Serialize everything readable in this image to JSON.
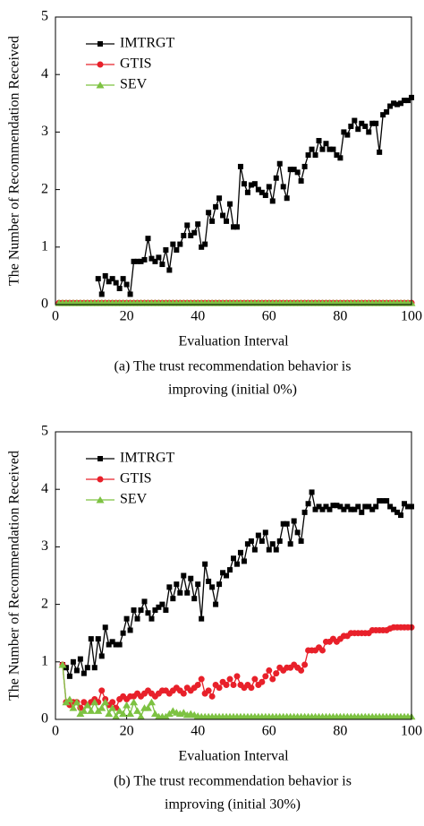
{
  "chart_data": [
    {
      "type": "line",
      "x_label": "Evaluation Interval",
      "y_label": "The Number of Recommendation Received",
      "caption": [
        "(a)   The trust recommendation behavior is",
        "improving (initial 0%)"
      ],
      "xlim": [
        0,
        100
      ],
      "ylim": [
        0,
        5
      ],
      "xticks": [
        0,
        20,
        40,
        60,
        80,
        100
      ],
      "yticks": [
        0,
        1,
        2,
        3,
        4,
        5
      ],
      "legend": "upper-left",
      "x": [
        1,
        2,
        3,
        4,
        5,
        6,
        7,
        8,
        9,
        10,
        11,
        12,
        13,
        14,
        15,
        16,
        17,
        18,
        19,
        20,
        21,
        22,
        23,
        24,
        25,
        26,
        27,
        28,
        29,
        30,
        31,
        32,
        33,
        34,
        35,
        36,
        37,
        38,
        39,
        40,
        41,
        42,
        43,
        44,
        45,
        46,
        47,
        48,
        49,
        50,
        51,
        52,
        53,
        54,
        55,
        56,
        57,
        58,
        59,
        60,
        61,
        62,
        63,
        64,
        65,
        66,
        67,
        68,
        69,
        70,
        71,
        72,
        73,
        74,
        75,
        76,
        77,
        78,
        79,
        80,
        81,
        82,
        83,
        84,
        85,
        86,
        87,
        88,
        89,
        90,
        91,
        92,
        93,
        94,
        95,
        96,
        97,
        98,
        99,
        100
      ],
      "series": [
        {
          "name": "IMTRGT",
          "color": "#000000",
          "marker": "square",
          "values": [
            null,
            null,
            null,
            null,
            null,
            null,
            null,
            null,
            null,
            null,
            null,
            0.45,
            0.18,
            0.5,
            0.4,
            0.45,
            0.38,
            0.28,
            0.45,
            0.35,
            0.18,
            0.75,
            0.75,
            0.75,
            0.78,
            1.15,
            0.8,
            0.75,
            0.82,
            0.7,
            0.95,
            0.6,
            1.05,
            0.95,
            1.05,
            1.2,
            1.38,
            1.2,
            1.25,
            1.4,
            1.0,
            1.05,
            1.6,
            1.45,
            1.7,
            1.85,
            1.55,
            1.45,
            1.75,
            1.35,
            1.35,
            2.4,
            2.1,
            1.95,
            2.08,
            2.1,
            2.0,
            1.95,
            1.9,
            2.05,
            1.8,
            2.2,
            2.45,
            2.05,
            1.85,
            2.35,
            2.35,
            2.3,
            2.15,
            2.4,
            2.6,
            2.7,
            2.6,
            2.85,
            2.7,
            2.8,
            2.7,
            2.7,
            2.6,
            2.55,
            3.0,
            2.95,
            3.1,
            3.2,
            3.05,
            3.15,
            3.1,
            3.0,
            3.15,
            3.15,
            2.65,
            3.3,
            3.35,
            3.45,
            3.5,
            3.48,
            3.5,
            3.55,
            3.55,
            3.6
          ]
        },
        {
          "name": "GTIS",
          "color": "#e8202a",
          "marker": "circle",
          "values": [
            0.03,
            0.03,
            0.03,
            0.03,
            0.03,
            0.03,
            0.03,
            0.03,
            0.03,
            0.03,
            0.03,
            0.03,
            0.03,
            0.03,
            0.03,
            0.03,
            0.03,
            0.03,
            0.03,
            0.03,
            0.03,
            0.03,
            0.03,
            0.03,
            0.03,
            0.03,
            0.03,
            0.03,
            0.03,
            0.03,
            0.03,
            0.03,
            0.03,
            0.03,
            0.03,
            0.03,
            0.03,
            0.03,
            0.03,
            0.03,
            0.03,
            0.03,
            0.03,
            0.03,
            0.03,
            0.03,
            0.03,
            0.03,
            0.03,
            0.03,
            0.03,
            0.03,
            0.03,
            0.03,
            0.03,
            0.03,
            0.03,
            0.03,
            0.03,
            0.03,
            0.03,
            0.03,
            0.03,
            0.03,
            0.03,
            0.03,
            0.03,
            0.03,
            0.03,
            0.03,
            0.03,
            0.03,
            0.03,
            0.03,
            0.03,
            0.03,
            0.03,
            0.03,
            0.03,
            0.03,
            0.03,
            0.03,
            0.03,
            0.03,
            0.03,
            0.03,
            0.03,
            0.03,
            0.03,
            0.03,
            0.03,
            0.03,
            0.03,
            0.03,
            0.03,
            0.03,
            0.03,
            0.03,
            0.03,
            0.03
          ]
        },
        {
          "name": "SEV",
          "color": "#7dc242",
          "marker": "triangle",
          "values": [
            0.03,
            0.03,
            0.03,
            0.03,
            0.03,
            0.03,
            0.03,
            0.03,
            0.03,
            0.03,
            0.03,
            0.03,
            0.03,
            0.03,
            0.03,
            0.03,
            0.03,
            0.03,
            0.03,
            0.03,
            0.03,
            0.03,
            0.03,
            0.03,
            0.03,
            0.03,
            0.03,
            0.03,
            0.03,
            0.03,
            0.03,
            0.03,
            0.03,
            0.03,
            0.03,
            0.03,
            0.03,
            0.03,
            0.03,
            0.03,
            0.03,
            0.03,
            0.03,
            0.03,
            0.03,
            0.03,
            0.03,
            0.03,
            0.03,
            0.03,
            0.03,
            0.03,
            0.03,
            0.03,
            0.03,
            0.03,
            0.03,
            0.03,
            0.03,
            0.03,
            0.03,
            0.03,
            0.03,
            0.03,
            0.03,
            0.03,
            0.03,
            0.03,
            0.03,
            0.03,
            0.03,
            0.03,
            0.03,
            0.03,
            0.03,
            0.03,
            0.03,
            0.03,
            0.03,
            0.03,
            0.03,
            0.03,
            0.03,
            0.03,
            0.03,
            0.03,
            0.03,
            0.03,
            0.03,
            0.03,
            0.03,
            0.03,
            0.03,
            0.03,
            0.03,
            0.03,
            0.03,
            0.03,
            0.03,
            0.03
          ]
        }
      ]
    },
    {
      "type": "line",
      "x_label": "Evaluation Interval",
      "y_label": "The Number of Recommendation Received",
      "caption": [
        "(b)   The trust recommendation behavior is",
        "improving (initial 30%)"
      ],
      "xlim": [
        0,
        100
      ],
      "ylim": [
        0,
        5
      ],
      "xticks": [
        0,
        20,
        40,
        60,
        80,
        100
      ],
      "yticks": [
        0,
        1,
        2,
        3,
        4,
        5
      ],
      "legend": "upper-left",
      "x": [
        1,
        2,
        3,
        4,
        5,
        6,
        7,
        8,
        9,
        10,
        11,
        12,
        13,
        14,
        15,
        16,
        17,
        18,
        19,
        20,
        21,
        22,
        23,
        24,
        25,
        26,
        27,
        28,
        29,
        30,
        31,
        32,
        33,
        34,
        35,
        36,
        37,
        38,
        39,
        40,
        41,
        42,
        43,
        44,
        45,
        46,
        47,
        48,
        49,
        50,
        51,
        52,
        53,
        54,
        55,
        56,
        57,
        58,
        59,
        60,
        61,
        62,
        63,
        64,
        65,
        66,
        67,
        68,
        69,
        70,
        71,
        72,
        73,
        74,
        75,
        76,
        77,
        78,
        79,
        80,
        81,
        82,
        83,
        84,
        85,
        86,
        87,
        88,
        89,
        90,
        91,
        92,
        93,
        94,
        95,
        96,
        97,
        98,
        99,
        100
      ],
      "series": [
        {
          "name": "IMTRGT",
          "color": "#000000",
          "marker": "square",
          "values": [
            null,
            0.95,
            0.9,
            0.75,
            1.0,
            0.85,
            1.05,
            0.8,
            0.9,
            1.4,
            0.9,
            1.4,
            1.1,
            1.6,
            1.3,
            1.35,
            1.3,
            1.3,
            1.5,
            1.75,
            1.55,
            1.9,
            1.75,
            1.9,
            2.05,
            1.85,
            1.75,
            1.9,
            1.95,
            2.0,
            1.9,
            2.3,
            2.1,
            2.35,
            2.2,
            2.5,
            2.2,
            2.45,
            2.1,
            2.35,
            1.75,
            2.7,
            2.4,
            2.3,
            2.0,
            2.35,
            2.55,
            2.5,
            2.6,
            2.8,
            2.7,
            2.9,
            2.75,
            3.05,
            3.1,
            2.95,
            3.2,
            3.1,
            3.25,
            2.95,
            3.05,
            2.95,
            3.1,
            3.4,
            3.4,
            3.05,
            3.45,
            3.25,
            3.1,
            3.6,
            3.75,
            3.95,
            3.65,
            3.7,
            3.65,
            3.7,
            3.65,
            3.72,
            3.72,
            3.7,
            3.65,
            3.7,
            3.65,
            3.65,
            3.7,
            3.6,
            3.7,
            3.7,
            3.65,
            3.7,
            3.8,
            3.8,
            3.8,
            3.7,
            3.65,
            3.6,
            3.55,
            3.75,
            3.7,
            3.7
          ]
        },
        {
          "name": "GTIS",
          "color": "#e8202a",
          "marker": "circle",
          "values": [
            null,
            0.95,
            0.3,
            0.25,
            0.3,
            0.3,
            0.2,
            0.3,
            0.25,
            0.3,
            0.35,
            0.3,
            0.5,
            0.35,
            0.25,
            0.3,
            0.2,
            0.35,
            0.4,
            0.35,
            0.4,
            0.4,
            0.45,
            0.4,
            0.45,
            0.5,
            0.45,
            0.4,
            0.45,
            0.5,
            0.5,
            0.45,
            0.5,
            0.55,
            0.5,
            0.45,
            0.55,
            0.5,
            0.55,
            0.6,
            0.7,
            0.45,
            0.5,
            0.4,
            0.6,
            0.55,
            0.65,
            0.6,
            0.7,
            0.6,
            0.75,
            0.6,
            0.55,
            0.6,
            0.55,
            0.7,
            0.6,
            0.65,
            0.75,
            0.85,
            0.7,
            0.8,
            0.9,
            0.85,
            0.9,
            0.9,
            0.95,
            0.9,
            0.85,
            0.95,
            1.2,
            1.2,
            1.2,
            1.25,
            1.2,
            1.35,
            1.35,
            1.4,
            1.35,
            1.4,
            1.45,
            1.45,
            1.5,
            1.5,
            1.5,
            1.5,
            1.5,
            1.5,
            1.55,
            1.55,
            1.55,
            1.55,
            1.55,
            1.58,
            1.6,
            1.6,
            1.6,
            1.6,
            1.6,
            1.6
          ]
        },
        {
          "name": "SEV",
          "color": "#7dc242",
          "marker": "triangle",
          "values": [
            null,
            0.95,
            0.3,
            0.35,
            0.2,
            0.3,
            0.1,
            0.15,
            0.25,
            0.15,
            0.3,
            0.15,
            0.2,
            0.3,
            0.1,
            0.2,
            0.05,
            0.15,
            0.1,
            0.25,
            0.1,
            0.3,
            0.15,
            0.05,
            0.2,
            0.2,
            0.3,
            0.1,
            0.05,
            0.05,
            0.05,
            0.1,
            0.15,
            0.12,
            0.1,
            0.12,
            0.08,
            0.1,
            0.08,
            0.06,
            0.05,
            0.05,
            0.05,
            0.05,
            0.05,
            0.05,
            0.05,
            0.05,
            0.05,
            0.05,
            0.05,
            0.05,
            0.05,
            0.05,
            0.05,
            0.05,
            0.05,
            0.05,
            0.05,
            0.05,
            0.05,
            0.05,
            0.05,
            0.05,
            0.05,
            0.05,
            0.05,
            0.05,
            0.05,
            0.05,
            0.05,
            0.05,
            0.05,
            0.05,
            0.05,
            0.05,
            0.05,
            0.05,
            0.05,
            0.05,
            0.05,
            0.05,
            0.05,
            0.05,
            0.05,
            0.05,
            0.05,
            0.05,
            0.05,
            0.05,
            0.05,
            0.05,
            0.05,
            0.05,
            0.05,
            0.05,
            0.05,
            0.05,
            0.05,
            0.05
          ]
        }
      ]
    }
  ]
}
